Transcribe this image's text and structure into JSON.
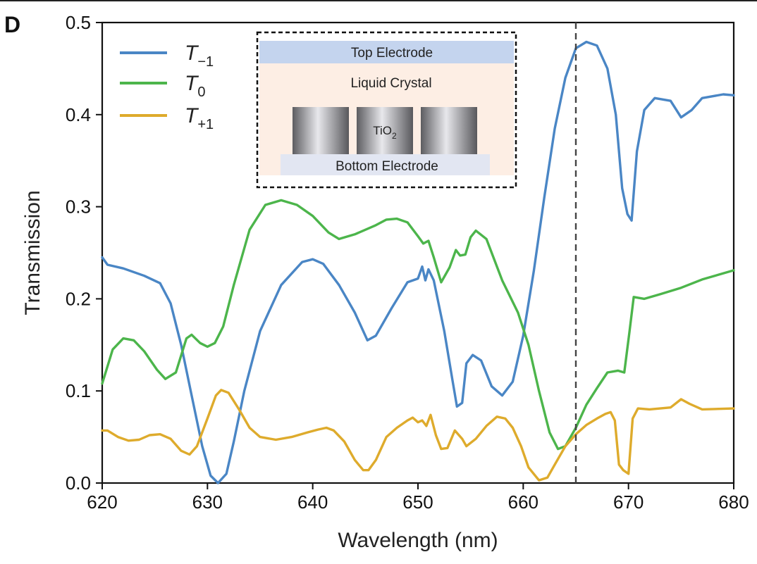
{
  "panel_label": "D",
  "chart_data": {
    "type": "line",
    "title": "",
    "xlabel": "Wavelength (nm)",
    "ylabel": "Transmission",
    "xlim": [
      620,
      680
    ],
    "ylim": [
      0.0,
      0.5
    ],
    "xticks": [
      620,
      630,
      640,
      650,
      660,
      670,
      680
    ],
    "yticks": [
      0.0,
      0.1,
      0.2,
      0.3,
      0.4,
      0.5
    ],
    "x_tick_labels": [
      "620",
      "630",
      "640",
      "650",
      "660",
      "670",
      "680"
    ],
    "y_tick_labels": [
      "0.0",
      "0.1",
      "0.2",
      "0.3",
      "0.4",
      "0.5"
    ],
    "grid": false,
    "legend_position": "top-left",
    "vline": {
      "x": 665,
      "style": "dashed",
      "color": "#444444"
    },
    "series": [
      {
        "name": "T-1",
        "label_base": "T",
        "label_sub": "−1",
        "color": "#4a86c5",
        "points": [
          [
            620,
            0.245
          ],
          [
            620.5,
            0.237
          ],
          [
            622,
            0.233
          ],
          [
            624,
            0.225
          ],
          [
            625.5,
            0.217
          ],
          [
            626.5,
            0.195
          ],
          [
            627.5,
            0.15
          ],
          [
            628.5,
            0.095
          ],
          [
            629.5,
            0.04
          ],
          [
            630.3,
            0.008
          ],
          [
            631,
            0.0
          ],
          [
            631.8,
            0.01
          ],
          [
            632.5,
            0.045
          ],
          [
            633.5,
            0.1
          ],
          [
            635,
            0.165
          ],
          [
            637,
            0.215
          ],
          [
            639,
            0.24
          ],
          [
            640,
            0.243
          ],
          [
            641,
            0.238
          ],
          [
            642.5,
            0.215
          ],
          [
            644,
            0.185
          ],
          [
            645.2,
            0.155
          ],
          [
            646,
            0.16
          ],
          [
            647.5,
            0.19
          ],
          [
            649,
            0.218
          ],
          [
            650,
            0.222
          ],
          [
            650.4,
            0.235
          ],
          [
            650.7,
            0.22
          ],
          [
            651,
            0.232
          ],
          [
            651.5,
            0.22
          ],
          [
            652.5,
            0.165
          ],
          [
            653.3,
            0.11
          ],
          [
            653.7,
            0.083
          ],
          [
            654.2,
            0.087
          ],
          [
            654.6,
            0.13
          ],
          [
            655.2,
            0.139
          ],
          [
            656,
            0.133
          ],
          [
            657,
            0.105
          ],
          [
            658,
            0.095
          ],
          [
            659,
            0.11
          ],
          [
            660,
            0.16
          ],
          [
            661,
            0.23
          ],
          [
            662,
            0.31
          ],
          [
            663,
            0.385
          ],
          [
            664,
            0.44
          ],
          [
            665,
            0.472
          ],
          [
            666,
            0.479
          ],
          [
            667,
            0.475
          ],
          [
            668,
            0.45
          ],
          [
            668.8,
            0.4
          ],
          [
            669.4,
            0.32
          ],
          [
            669.9,
            0.292
          ],
          [
            670.3,
            0.285
          ],
          [
            670.8,
            0.36
          ],
          [
            671.5,
            0.405
          ],
          [
            672.5,
            0.418
          ],
          [
            674,
            0.415
          ],
          [
            675,
            0.397
          ],
          [
            676,
            0.405
          ],
          [
            677,
            0.418
          ],
          [
            679,
            0.422
          ],
          [
            680,
            0.421
          ]
        ]
      },
      {
        "name": "T0",
        "label_base": "T",
        "label_sub": "0",
        "color": "#4cb54b",
        "points": [
          [
            620,
            0.108
          ],
          [
            621,
            0.145
          ],
          [
            622,
            0.157
          ],
          [
            623,
            0.155
          ],
          [
            624,
            0.143
          ],
          [
            625.2,
            0.123
          ],
          [
            626,
            0.113
          ],
          [
            627,
            0.12
          ],
          [
            628,
            0.157
          ],
          [
            628.5,
            0.161
          ],
          [
            629.3,
            0.152
          ],
          [
            630,
            0.148
          ],
          [
            630.7,
            0.152
          ],
          [
            631.5,
            0.17
          ],
          [
            632.5,
            0.215
          ],
          [
            634,
            0.275
          ],
          [
            635.5,
            0.302
          ],
          [
            637,
            0.307
          ],
          [
            638.5,
            0.302
          ],
          [
            640,
            0.29
          ],
          [
            641.5,
            0.272
          ],
          [
            642.5,
            0.265
          ],
          [
            644,
            0.27
          ],
          [
            646,
            0.28
          ],
          [
            647,
            0.286
          ],
          [
            648,
            0.287
          ],
          [
            649,
            0.283
          ],
          [
            650,
            0.268
          ],
          [
            650.5,
            0.26
          ],
          [
            651,
            0.263
          ],
          [
            651.5,
            0.245
          ],
          [
            652.2,
            0.218
          ],
          [
            653,
            0.234
          ],
          [
            653.6,
            0.253
          ],
          [
            654,
            0.247
          ],
          [
            654.5,
            0.248
          ],
          [
            655,
            0.267
          ],
          [
            655.5,
            0.274
          ],
          [
            656.5,
            0.265
          ],
          [
            658,
            0.22
          ],
          [
            659.5,
            0.185
          ],
          [
            660.5,
            0.15
          ],
          [
            661.5,
            0.1
          ],
          [
            662.5,
            0.055
          ],
          [
            663.3,
            0.037
          ],
          [
            664,
            0.04
          ],
          [
            665,
            0.06
          ],
          [
            666,
            0.085
          ],
          [
            667,
            0.103
          ],
          [
            668,
            0.12
          ],
          [
            669,
            0.122
          ],
          [
            669.6,
            0.12
          ],
          [
            670.1,
            0.165
          ],
          [
            670.5,
            0.202
          ],
          [
            671.5,
            0.2
          ],
          [
            673,
            0.205
          ],
          [
            675,
            0.212
          ],
          [
            677,
            0.221
          ],
          [
            680,
            0.231
          ]
        ]
      },
      {
        "name": "T+1",
        "label_base": "T",
        "label_sub": "+1",
        "color": "#deab2c",
        "points": [
          [
            620,
            0.057
          ],
          [
            620.5,
            0.057
          ],
          [
            621.5,
            0.05
          ],
          [
            622.5,
            0.046
          ],
          [
            623.5,
            0.047
          ],
          [
            624.5,
            0.052
          ],
          [
            625.5,
            0.053
          ],
          [
            626.5,
            0.048
          ],
          [
            627.5,
            0.035
          ],
          [
            628.3,
            0.031
          ],
          [
            629,
            0.04
          ],
          [
            630,
            0.07
          ],
          [
            630.8,
            0.095
          ],
          [
            631.3,
            0.101
          ],
          [
            632,
            0.098
          ],
          [
            633,
            0.08
          ],
          [
            634,
            0.06
          ],
          [
            635,
            0.05
          ],
          [
            636.5,
            0.047
          ],
          [
            638,
            0.05
          ],
          [
            639.5,
            0.055
          ],
          [
            640.5,
            0.058
          ],
          [
            641.3,
            0.06
          ],
          [
            642,
            0.057
          ],
          [
            643,
            0.045
          ],
          [
            644,
            0.025
          ],
          [
            644.8,
            0.014
          ],
          [
            645.3,
            0.014
          ],
          [
            646,
            0.025
          ],
          [
            647,
            0.05
          ],
          [
            648,
            0.06
          ],
          [
            649,
            0.068
          ],
          [
            649.5,
            0.071
          ],
          [
            650,
            0.066
          ],
          [
            650.4,
            0.068
          ],
          [
            650.8,
            0.062
          ],
          [
            651.2,
            0.074
          ],
          [
            651.7,
            0.052
          ],
          [
            652.2,
            0.037
          ],
          [
            652.8,
            0.038
          ],
          [
            653.5,
            0.057
          ],
          [
            654.2,
            0.048
          ],
          [
            654.6,
            0.04
          ],
          [
            655.5,
            0.048
          ],
          [
            656.5,
            0.062
          ],
          [
            657.5,
            0.072
          ],
          [
            658.3,
            0.07
          ],
          [
            659,
            0.06
          ],
          [
            659.8,
            0.04
          ],
          [
            660.5,
            0.017
          ],
          [
            661.5,
            0.003
          ],
          [
            662.3,
            0.006
          ],
          [
            663,
            0.02
          ],
          [
            664,
            0.04
          ],
          [
            665,
            0.053
          ],
          [
            666,
            0.063
          ],
          [
            667,
            0.07
          ],
          [
            667.8,
            0.075
          ],
          [
            668.3,
            0.077
          ],
          [
            668.7,
            0.068
          ],
          [
            669.1,
            0.02
          ],
          [
            669.5,
            0.014
          ],
          [
            670,
            0.01
          ],
          [
            670.4,
            0.07
          ],
          [
            670.9,
            0.081
          ],
          [
            672,
            0.08
          ],
          [
            674,
            0.082
          ],
          [
            675,
            0.091
          ],
          [
            675.8,
            0.086
          ],
          [
            677,
            0.08
          ],
          [
            680,
            0.081
          ]
        ]
      }
    ]
  },
  "inset": {
    "top_electrode": "Top Electrode",
    "liquid_crystal": "Liquid Crystal",
    "tio2_base": "TiO",
    "tio2_sub": "2",
    "bottom_electrode": "Bottom Electrode",
    "colors": {
      "lc_bg": "#fdeee4",
      "top_electrode": "#c4d4ee",
      "bottom_electrode": "#e2e6f2"
    }
  }
}
